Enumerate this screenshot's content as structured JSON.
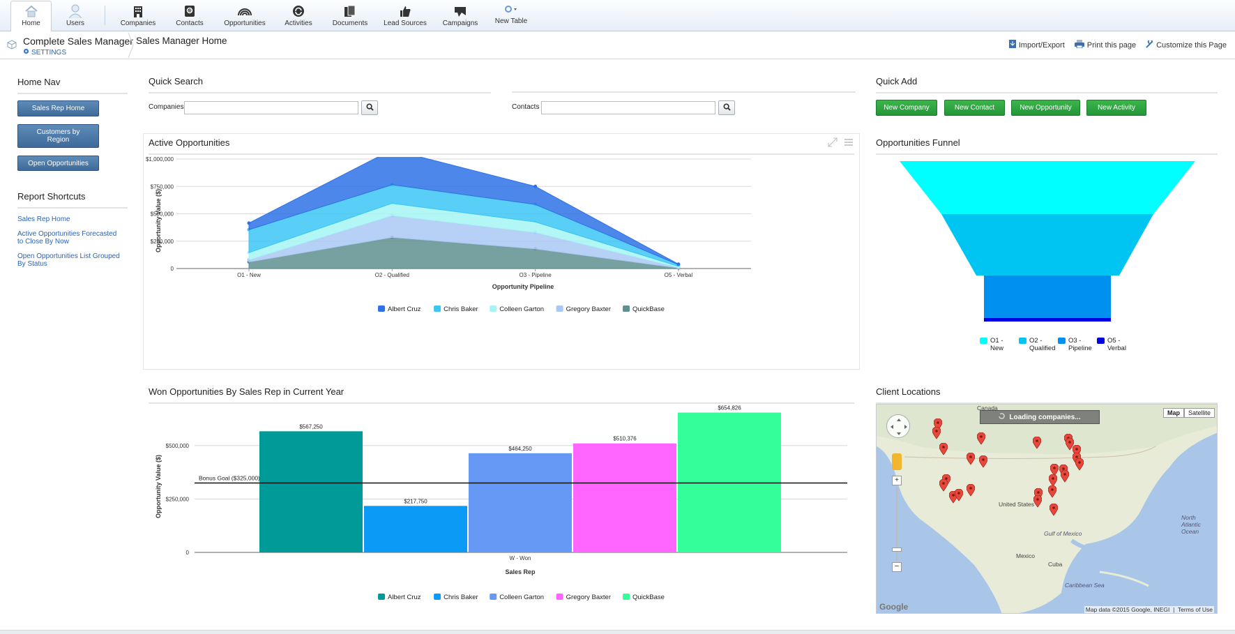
{
  "toolbar": {
    "items": [
      {
        "label": "Home",
        "icon": "home-icon"
      },
      {
        "label": "Users",
        "icon": "user-icon"
      },
      {
        "label": "Companies",
        "icon": "building-icon"
      },
      {
        "label": "Contacts",
        "icon": "contact-card-icon"
      },
      {
        "label": "Opportunities",
        "icon": "rainbow-icon"
      },
      {
        "label": "Activities",
        "icon": "refresh-icon"
      },
      {
        "label": "Documents",
        "icon": "documents-icon"
      },
      {
        "label": "Lead Sources",
        "icon": "thumbs-up-icon"
      },
      {
        "label": "Campaigns",
        "icon": "megaphone-icon"
      },
      {
        "label": "New Table",
        "icon": "new-table-icon"
      }
    ]
  },
  "header": {
    "app_title": "Complete Sales Manager",
    "settings_label": "SETTINGS",
    "page_title": "Sales Manager Home",
    "actions": {
      "import_export": "Import/Export",
      "print": "Print this page",
      "customize": "Customize this Page"
    }
  },
  "home_nav": {
    "title": "Home Nav",
    "buttons": [
      "Sales Rep Home",
      "Customers by Region",
      "Open Opportunities"
    ]
  },
  "report_shortcuts": {
    "title": "Report Shortcuts",
    "links": [
      "Sales Rep Home",
      "Active Opportunities Forecasted to Close By Now",
      "Open Opportunities List Grouped By Status"
    ]
  },
  "quick_search": {
    "title": "Quick Search",
    "companies_label": "Companies",
    "contacts_label": "Contacts",
    "companies_value": "",
    "contacts_value": ""
  },
  "quick_add": {
    "title": "Quick Add",
    "buttons": [
      "New Company",
      "New Contact",
      "New Opportunity",
      "New Activity"
    ]
  },
  "colors": {
    "accent_blue": "#2a63b5",
    "add_green": "#2ea543",
    "nav_blue": "#4f7aa9"
  },
  "chart_data": [
    {
      "type": "area",
      "title": "Active Opportunities",
      "xlabel": "Opportunity Pipeline",
      "ylabel": "Opportunity Value ($)",
      "categories": [
        "O1 - New",
        "O2 - Qualified",
        "O3 - Pipeline",
        "O5 - Verbal"
      ],
      "ylim": [
        0,
        1000000
      ],
      "yticks": [
        0,
        250000,
        500000,
        750000,
        1000000
      ],
      "ytick_labels": [
        "0",
        "$250,000",
        "$500,000",
        "$750,000",
        "$1,000,000"
      ],
      "stacked": true,
      "series": [
        {
          "name": "QuickBase",
          "color": "#5f9090",
          "values": [
            60000,
            285000,
            180000,
            5000
          ]
        },
        {
          "name": "Gregory Baxter",
          "color": "#a9c8f5",
          "values": [
            20000,
            200000,
            150000,
            5000
          ]
        },
        {
          "name": "Colleen Garton",
          "color": "#a6f4f4",
          "values": [
            65000,
            110000,
            95000,
            10000
          ]
        },
        {
          "name": "Chris Baker",
          "color": "#3cc6f4",
          "values": [
            210000,
            170000,
            160000,
            15000
          ]
        },
        {
          "name": "Albert Cruz",
          "color": "#2f72e6",
          "values": [
            60000,
            320000,
            165000,
            5000
          ]
        }
      ],
      "legend_order": [
        "Albert Cruz",
        "Chris Baker",
        "Colleen Garton",
        "Gregory Baxter",
        "QuickBase"
      ],
      "grid": true,
      "legend": "bottom"
    },
    {
      "type": "funnel",
      "title": "Opportunities Funnel",
      "categories": [
        "O1 - New",
        "O2 - Qualified",
        "O3 - Pipeline",
        "O5 - Verbal"
      ],
      "colors": [
        "#00ffff",
        "#00c5f2",
        "#0090f0",
        "#0000e0"
      ],
      "legend": "bottom"
    },
    {
      "type": "bar",
      "title": "Won Opportunities By Sales Rep in Current Year",
      "xlabel": "Sales Rep",
      "ylabel": "Opportunity Value ($)",
      "categories": [
        "W - Won"
      ],
      "ylim": [
        0,
        650000
      ],
      "yticks": [
        0,
        250000,
        500000
      ],
      "ytick_labels": [
        "0",
        "$250,000",
        "$500,000"
      ],
      "series": [
        {
          "name": "Albert Cruz",
          "color": "#009a98",
          "values": [
            567250
          ],
          "label": "$567,250"
        },
        {
          "name": "Chris Baker",
          "color": "#0b9af5",
          "values": [
            217750
          ],
          "label": "$217,750"
        },
        {
          "name": "Colleen Garton",
          "color": "#6699f5",
          "values": [
            464250
          ],
          "label": "$464,250"
        },
        {
          "name": "Gregory Baxter",
          "color": "#fe66ff",
          "values": [
            510376
          ],
          "label": "$510,376"
        },
        {
          "name": "QuickBase",
          "color": "#33fe99",
          "values": [
            654826
          ],
          "label": "$654,826"
        }
      ],
      "reference_line": {
        "value": 325000,
        "label": "Bonus Goal ($325,000)"
      },
      "grid": true,
      "legend": "bottom"
    }
  ],
  "client_locations": {
    "title": "Client Locations",
    "loading_text": "Loading companies...",
    "map_type_map": "Map",
    "map_type_satellite": "Satellite",
    "google_label": "Google",
    "footer_data": "Map data ©2015 Google, INEGI",
    "footer_terms": "Terms of Use",
    "labels": [
      "Canada",
      "United States",
      "Mexico",
      "Gulf of Mexico",
      "Cuba",
      "Caribbean Sea",
      "North Atlantic Ocean"
    ]
  }
}
